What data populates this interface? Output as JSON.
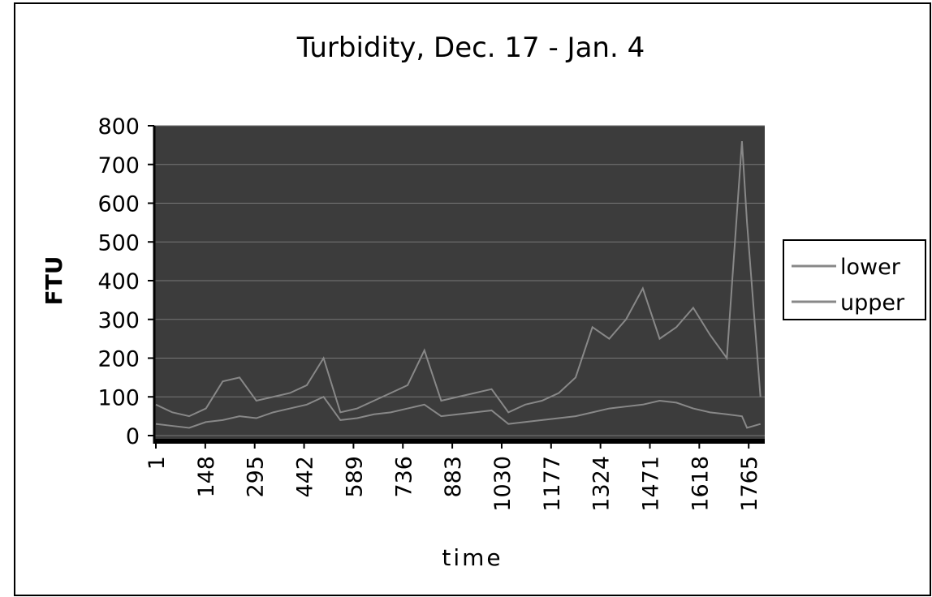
{
  "chart_data": {
    "type": "line",
    "title": "Turbidity, Dec. 17 - Jan. 4",
    "x_label": "time",
    "y_label": "FTU",
    "x": [
      1,
      50,
      100,
      150,
      200,
      250,
      300,
      350,
      400,
      450,
      500,
      550,
      600,
      650,
      700,
      750,
      800,
      850,
      900,
      950,
      1000,
      1050,
      1100,
      1150,
      1200,
      1250,
      1300,
      1350,
      1400,
      1450,
      1500,
      1550,
      1600,
      1650,
      1700,
      1745,
      1760,
      1800
    ],
    "series": [
      {
        "name": "lower",
        "color": "#888888",
        "values": [
          30,
          25,
          20,
          35,
          40,
          50,
          45,
          60,
          70,
          80,
          100,
          40,
          45,
          55,
          60,
          70,
          80,
          50,
          55,
          60,
          65,
          30,
          35,
          40,
          45,
          50,
          60,
          70,
          75,
          80,
          90,
          85,
          70,
          60,
          55,
          50,
          20,
          30
        ]
      },
      {
        "name": "upper",
        "color": "#888888",
        "values": [
          80,
          60,
          50,
          70,
          140,
          150,
          90,
          100,
          110,
          130,
          200,
          60,
          70,
          90,
          110,
          130,
          220,
          90,
          100,
          110,
          120,
          60,
          80,
          90,
          110,
          150,
          280,
          250,
          300,
          380,
          250,
          280,
          330,
          260,
          200,
          760,
          550,
          100
        ]
      }
    ],
    "xlim": [
      1,
      1808
    ],
    "xticks": [
      1,
      148,
      295,
      442,
      589,
      736,
      883,
      1030,
      1177,
      1324,
      1471,
      1618,
      1765
    ],
    "ylim": [
      0,
      800
    ],
    "yticks": [
      0,
      100,
      200,
      300,
      400,
      500,
      600,
      700,
      800
    ],
    "grid": true
  }
}
